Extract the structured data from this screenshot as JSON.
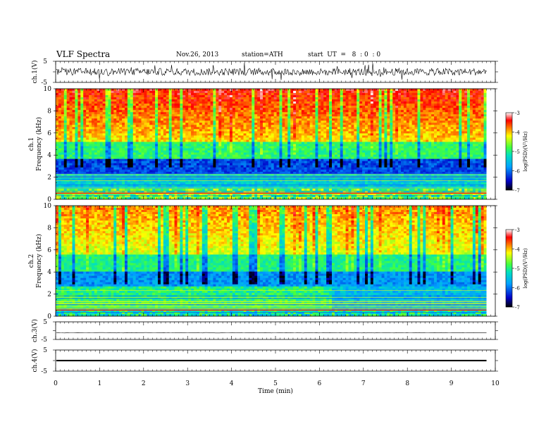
{
  "header": {
    "title": "VLF Spectra",
    "date": "Nov.26, 2013",
    "station": "station=ATH",
    "start": "start  UT  =   8  : 0  : 0"
  },
  "chart_data": {
    "type": "heatmap",
    "time_axis": {
      "label": "Time  (min)",
      "range": [
        0,
        10
      ],
      "ticks": [
        "0",
        "1",
        "2",
        "3",
        "4",
        "5",
        "6",
        "7",
        "8",
        "9",
        "10"
      ]
    },
    "panels": [
      {
        "id": "ch1_waveform",
        "type": "line",
        "ylabel": "ch.1(V)",
        "ylim": [
          -5,
          5
        ],
        "ytick_labels": [
          "5",
          "-5"
        ]
      },
      {
        "id": "ch1_spectrogram",
        "type": "heatmap",
        "ylabel": "ch.1\nFrequency  (kHz)",
        "ylim": [
          0,
          10
        ],
        "ytick_labels": [
          "0",
          "2",
          "4",
          "6",
          "8",
          "10"
        ],
        "colorbar": {
          "label": "log(PSD)(V²/Hz)",
          "range": [
            -7,
            -3
          ],
          "tick_labels": [
            "-3",
            "-4",
            "-5",
            "-6",
            "-7"
          ]
        }
      },
      {
        "id": "ch2_spectrogram",
        "type": "heatmap",
        "ylabel": "ch.2\nFrequency  (kHz)",
        "ylim": [
          0,
          10
        ],
        "ytick_labels": [
          "0",
          "2",
          "4",
          "6",
          "8",
          "10"
        ],
        "colorbar": {
          "label": "log(PSD)(V²/Hz)",
          "range": [
            -7,
            -3
          ],
          "tick_labels": [
            "-3",
            "-4",
            "-5",
            "-6",
            "-7"
          ]
        }
      },
      {
        "id": "ch3_waveform",
        "type": "line",
        "ylabel": "ch.3(V)",
        "ylim": [
          -5,
          5
        ],
        "ytick_labels": [
          "5",
          "-5"
        ]
      },
      {
        "id": "ch4_waveform",
        "type": "line",
        "ylabel": "ch.4(V)",
        "ylim": [
          -5,
          5
        ],
        "ytick_labels": [
          "5",
          "-5"
        ]
      }
    ],
    "data_end_min": 9.8
  }
}
